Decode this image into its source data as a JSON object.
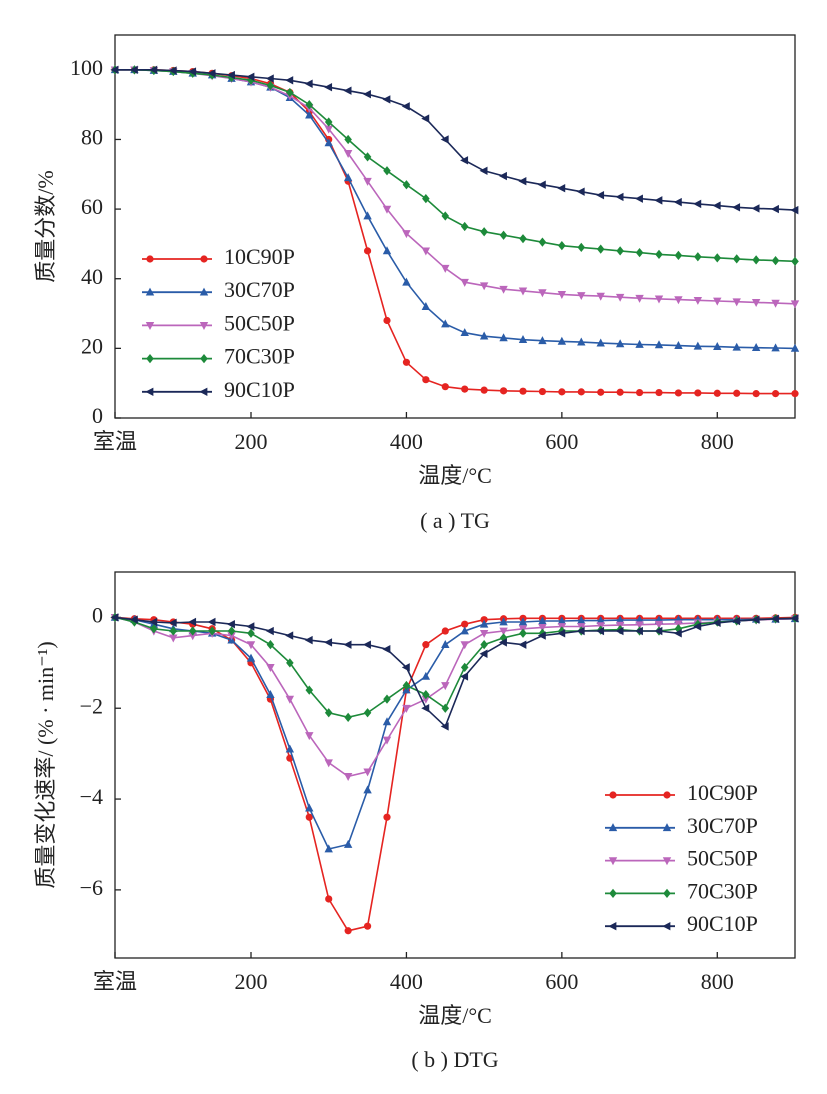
{
  "chart_data": [
    {
      "type": "line",
      "caption": "( a ) TG",
      "xlabel": "温度/°C",
      "ylabel": "质量分数/%",
      "xlim": [
        25,
        900
      ],
      "xticks": [
        {
          "value": 25,
          "label": "室温"
        },
        200,
        400,
        600,
        800
      ],
      "ylim": [
        0,
        110
      ],
      "yticks": [
        0,
        20,
        40,
        60,
        80,
        100
      ],
      "legend": "lower left",
      "x": [
        25,
        50,
        75,
        100,
        125,
        150,
        175,
        200,
        225,
        250,
        275,
        300,
        325,
        350,
        375,
        400,
        425,
        450,
        475,
        500,
        525,
        550,
        575,
        600,
        625,
        650,
        675,
        700,
        725,
        750,
        775,
        800,
        825,
        850,
        875,
        900
      ],
      "series": [
        {
          "name": "10C90P",
          "color": "#e52421",
          "marker": "circle",
          "values": [
            100,
            100,
            100,
            99.8,
            99.5,
            99,
            98.3,
            97.5,
            96,
            93.5,
            88,
            80,
            68,
            48,
            28,
            16,
            11,
            9,
            8.3,
            8,
            7.8,
            7.7,
            7.6,
            7.5,
            7.5,
            7.4,
            7.4,
            7.3,
            7.3,
            7.2,
            7.2,
            7.1,
            7.1,
            7,
            7,
            7
          ]
        },
        {
          "name": "30C70P",
          "color": "#2a5ca8",
          "marker": "triangle-up",
          "values": [
            100,
            100,
            99.8,
            99.5,
            99,
            98.5,
            97.5,
            96.5,
            95,
            92,
            87,
            79,
            69,
            58,
            48,
            39,
            32,
            27,
            24.5,
            23.5,
            23,
            22.5,
            22.2,
            22,
            21.8,
            21.5,
            21.3,
            21.1,
            21,
            20.8,
            20.6,
            20.5,
            20.3,
            20.2,
            20.1,
            20
          ]
        },
        {
          "name": "50C50P",
          "color": "#bb66bb",
          "marker": "triangle-down",
          "values": [
            100,
            100,
            99.8,
            99.5,
            99,
            98.3,
            97.5,
            96.5,
            95,
            92.5,
            89,
            83,
            76,
            68,
            60,
            53,
            48,
            43,
            39,
            38,
            37,
            36.5,
            36,
            35.5,
            35.2,
            35,
            34.7,
            34.4,
            34.2,
            34,
            33.8,
            33.6,
            33.4,
            33.2,
            33,
            32.8
          ]
        },
        {
          "name": "70C30P",
          "color": "#1d8a3a",
          "marker": "diamond",
          "values": [
            100,
            100,
            99.8,
            99.5,
            99,
            98.5,
            97.8,
            97,
            95.5,
            93.5,
            90,
            85,
            80,
            75,
            71,
            67,
            63,
            58,
            55,
            53.5,
            52.5,
            51.5,
            50.5,
            49.5,
            49,
            48.5,
            48,
            47.5,
            47,
            46.7,
            46.3,
            46,
            45.7,
            45.4,
            45.2,
            45
          ]
        },
        {
          "name": "90C10P",
          "color": "#1b2858",
          "marker": "triangle-left",
          "values": [
            100,
            100,
            100,
            99.8,
            99.5,
            99,
            98.5,
            98,
            97.5,
            97,
            96,
            95,
            94,
            93,
            91.5,
            89.5,
            86,
            80,
            74,
            71,
            69.5,
            68,
            67,
            66,
            65,
            64,
            63.5,
            63,
            62.5,
            62,
            61.5,
            61,
            60.5,
            60.2,
            60,
            59.7
          ]
        }
      ]
    },
    {
      "type": "line",
      "caption": "( b ) DTG",
      "xlabel": "温度/°C",
      "ylabel": "质量变化速率/ (% · min⁻¹)",
      "xlim": [
        25,
        900
      ],
      "xticks": [
        {
          "value": 25,
          "label": "室温"
        },
        200,
        400,
        600,
        800
      ],
      "ylim": [
        -7.5,
        1
      ],
      "yticks": [
        {
          "value": -6,
          "label": "−6"
        },
        {
          "value": -4,
          "label": "−4"
        },
        {
          "value": -2,
          "label": "−2"
        },
        0
      ],
      "legend": "lower right",
      "x": [
        25,
        50,
        75,
        100,
        125,
        150,
        175,
        200,
        225,
        250,
        275,
        300,
        325,
        350,
        375,
        400,
        425,
        450,
        475,
        500,
        525,
        550,
        575,
        600,
        625,
        650,
        675,
        700,
        725,
        750,
        775,
        800,
        825,
        850,
        875,
        900
      ],
      "series": [
        {
          "name": "10C90P",
          "color": "#e52421",
          "marker": "circle",
          "values": [
            0,
            -0.03,
            -0.05,
            -0.1,
            -0.15,
            -0.25,
            -0.5,
            -1,
            -1.8,
            -3.1,
            -4.4,
            -6.2,
            -6.9,
            -6.8,
            -4.4,
            -1.6,
            -0.6,
            -0.3,
            -0.15,
            -0.05,
            -0.03,
            -0.02,
            -0.02,
            -0.02,
            -0.02,
            -0.02,
            -0.02,
            -0.02,
            -0.02,
            -0.02,
            -0.02,
            -0.02,
            -0.02,
            -0.02,
            -0.01,
            0
          ]
        },
        {
          "name": "30C70P",
          "color": "#2a5ca8",
          "marker": "triangle-up",
          "values": [
            0,
            -0.05,
            -0.15,
            -0.25,
            -0.3,
            -0.35,
            -0.5,
            -0.9,
            -1.7,
            -2.9,
            -4.2,
            -5.1,
            -5.0,
            -3.8,
            -2.3,
            -1.6,
            -1.3,
            -0.6,
            -0.3,
            -0.15,
            -0.1,
            -0.1,
            -0.08,
            -0.08,
            -0.07,
            -0.07,
            -0.06,
            -0.06,
            -0.06,
            -0.05,
            -0.05,
            -0.05,
            -0.05,
            -0.04,
            -0.04,
            -0.03
          ]
        },
        {
          "name": "50C50P",
          "color": "#bb66bb",
          "marker": "triangle-down",
          "values": [
            0,
            -0.1,
            -0.3,
            -0.45,
            -0.4,
            -0.35,
            -0.4,
            -0.6,
            -1.1,
            -1.8,
            -2.6,
            -3.2,
            -3.5,
            -3.4,
            -2.7,
            -2.0,
            -1.8,
            -1.5,
            -0.6,
            -0.35,
            -0.3,
            -0.25,
            -0.22,
            -0.2,
            -0.2,
            -0.18,
            -0.17,
            -0.16,
            -0.15,
            -0.14,
            -0.12,
            -0.1,
            -0.08,
            -0.06,
            -0.04,
            -0.03
          ]
        },
        {
          "name": "70C30P",
          "color": "#1d8a3a",
          "marker": "diamond",
          "values": [
            0,
            -0.1,
            -0.25,
            -0.3,
            -0.3,
            -0.3,
            -0.3,
            -0.35,
            -0.6,
            -1.0,
            -1.6,
            -2.1,
            -2.2,
            -2.1,
            -1.8,
            -1.5,
            -1.7,
            -2.0,
            -1.1,
            -0.6,
            -0.45,
            -0.35,
            -0.35,
            -0.3,
            -0.3,
            -0.28,
            -0.27,
            -0.3,
            -0.3,
            -0.25,
            -0.15,
            -0.1,
            -0.08,
            -0.05,
            -0.03,
            -0.02
          ]
        },
        {
          "name": "90C10P",
          "color": "#1b2858",
          "marker": "triangle-left",
          "values": [
            0,
            -0.05,
            -0.1,
            -0.12,
            -0.1,
            -0.1,
            -0.15,
            -0.2,
            -0.3,
            -0.4,
            -0.5,
            -0.55,
            -0.6,
            -0.6,
            -0.7,
            -1.1,
            -2.0,
            -2.4,
            -1.3,
            -0.8,
            -0.55,
            -0.6,
            -0.4,
            -0.35,
            -0.3,
            -0.3,
            -0.3,
            -0.3,
            -0.3,
            -0.35,
            -0.2,
            -0.12,
            -0.08,
            -0.05,
            -0.03,
            -0.02
          ]
        }
      ]
    }
  ]
}
